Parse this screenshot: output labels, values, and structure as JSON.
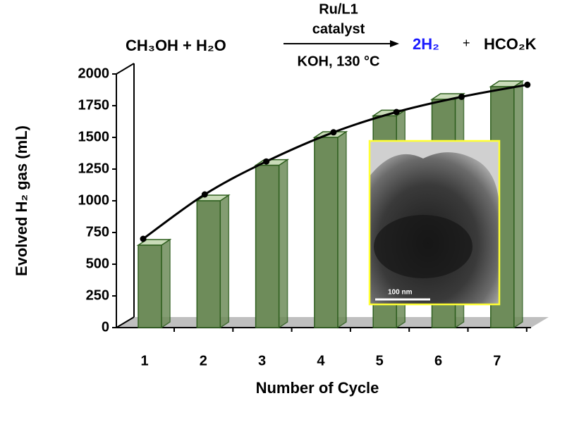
{
  "chart_data": {
    "type": "bar",
    "reaction": {
      "reactants": "CH₃OH  +  H₂O",
      "above_arrow": "Ru/L1",
      "above_arrow_2": "catalyst",
      "below_arrow": "KOH, 130 °C",
      "product_1": "2H₂",
      "plus": "+",
      "product_2": "HCO₂K"
    },
    "x_label": "Number of Cycle",
    "y_label": "Evolved H₂ gas (mL)",
    "categories": [
      "1",
      "2",
      "3",
      "4",
      "5",
      "6",
      "7"
    ],
    "series": [
      {
        "type": "bar",
        "color": "#6e8c5a",
        "values": [
          650,
          1000,
          1280,
          1500,
          1670,
          1800,
          1900
        ]
      },
      {
        "type": "line",
        "color": "#000000",
        "values": [
          700,
          1050,
          1310,
          1540,
          1700,
          1820,
          1915
        ]
      }
    ],
    "ylim": [
      0,
      2000
    ],
    "yticks": [
      0,
      250,
      500,
      750,
      1000,
      1250,
      1500,
      1750,
      2000
    ],
    "inset": {
      "scale_bar": "100 nm"
    }
  }
}
